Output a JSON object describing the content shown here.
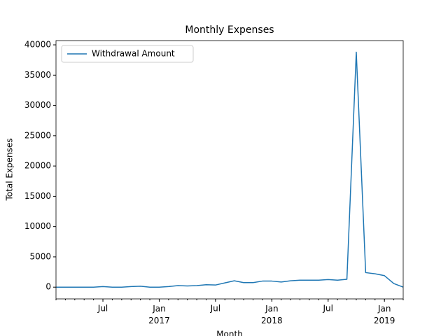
{
  "chart_data": {
    "type": "line",
    "title": "Monthly Expenses",
    "xlabel": "Month",
    "ylabel": "Total Expenses",
    "x": [
      "2016-02",
      "2016-03",
      "2016-04",
      "2016-05",
      "2016-06",
      "2016-07",
      "2016-08",
      "2016-09",
      "2016-10",
      "2016-11",
      "2016-12",
      "2017-01",
      "2017-02",
      "2017-03",
      "2017-04",
      "2017-05",
      "2017-06",
      "2017-07",
      "2017-08",
      "2017-09",
      "2017-10",
      "2017-11",
      "2017-12",
      "2018-01",
      "2018-02",
      "2018-03",
      "2018-04",
      "2018-05",
      "2018-06",
      "2018-07",
      "2018-08",
      "2018-09",
      "2018-10",
      "2018-11",
      "2018-12",
      "2019-01",
      "2019-02",
      "2019-03"
    ],
    "series": [
      {
        "name": "Withdrawal Amount",
        "color": "#1f77b4",
        "values": [
          0,
          0,
          0,
          0,
          0,
          100,
          0,
          0,
          100,
          150,
          0,
          0,
          100,
          250,
          200,
          250,
          400,
          350,
          700,
          1050,
          750,
          750,
          1000,
          1000,
          850,
          1050,
          1150,
          1150,
          1150,
          1250,
          1150,
          1300,
          38800,
          2400,
          2200,
          1900,
          600,
          0
        ]
      }
    ],
    "xlim": [
      "2016-02",
      "2019-03"
    ],
    "xticks": [
      {
        "value": "2016-07",
        "label": "Jul"
      },
      {
        "value": "2017-01",
        "label": "Jan\n2017"
      },
      {
        "value": "2017-07",
        "label": "Jul"
      },
      {
        "value": "2018-01",
        "label": "Jan\n2018"
      },
      {
        "value": "2018-07",
        "label": "Jul"
      },
      {
        "value": "2019-01",
        "label": "Jan\n2019"
      }
    ],
    "ylim": [
      -1940,
      40700
    ],
    "yticks": [
      0,
      5000,
      10000,
      15000,
      20000,
      25000,
      30000,
      35000,
      40000
    ],
    "legend": "upper left",
    "grid": false
  }
}
